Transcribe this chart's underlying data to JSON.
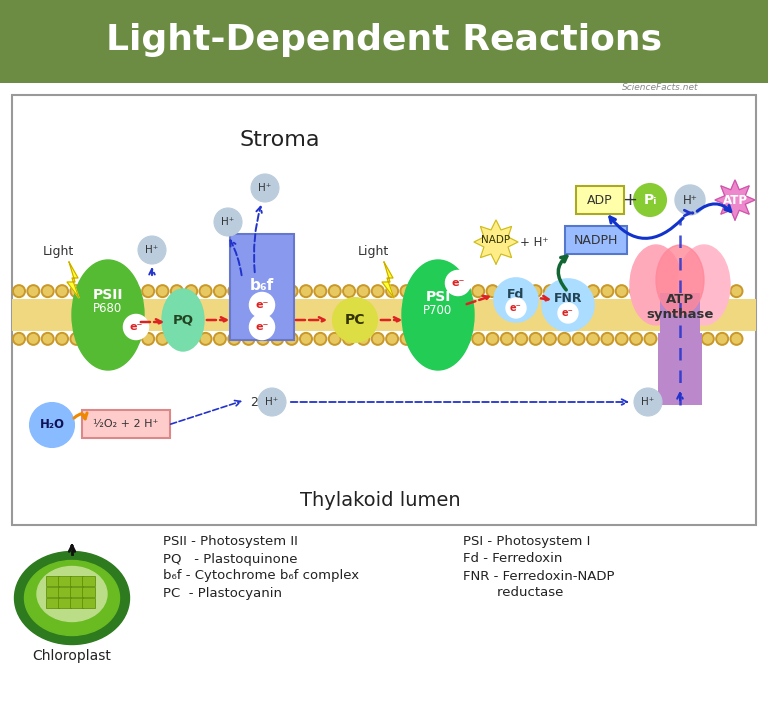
{
  "title": "Light-Dependent Reactions",
  "title_bg": "#6b8c42",
  "title_color": "#ffffff",
  "bg_color": "#ffffff",
  "stroma_label": "Stroma",
  "lumen_label": "Thylakoid lumen",
  "mem_fill": "#f0d880",
  "bead_dark": "#c8982a",
  "bead_light": "#e8c860",
  "psii_color": "#55bb33",
  "pq_color": "#77ddaa",
  "b6f_color": "#8899ee",
  "b6f_edge": "#6677cc",
  "pc_color": "#dddd44",
  "psi_color": "#22cc55",
  "fd_color": "#aaddff",
  "fnr_color": "#aaddff",
  "atp_lobe_l": "#ffaabb",
  "atp_lobe_r": "#ffbbcc",
  "atp_center": "#ff8899",
  "atp_stem": "#bb88cc",
  "h_bubble": "#bbccdd",
  "h2o_color": "#88bbff",
  "o2_color": "#ffcccc",
  "o2_edge": "#dd8888",
  "adp_color": "#ffffaa",
  "adp_edge": "#aaaa22",
  "pi_color": "#88cc33",
  "atp_star": "#ee88cc",
  "nadp_color": "#ffff99",
  "nadp_edge": "#cccc22",
  "nadph_color": "#99bbff",
  "nadph_edge": "#5577cc",
  "red_arr": "#dd2222",
  "blue_arr": "#2233cc",
  "green_arr": "#116633",
  "orange_arr": "#ee8800",
  "light_bolt": "#ffff33",
  "light_bolt_edge": "#ccaa00",
  "watermark": "ScienceFacts.net",
  "legend_left": [
    "PSII - Photosystem II",
    "PQ   - Plastoquinone",
    "b₆f - Cytochrome b₆f complex",
    "PC  - Plastocyanin"
  ],
  "legend_right": [
    "PSI - Photosystem I",
    "Fd - Ferredoxin",
    "FNR - Ferredoxin-NADP",
    "        reductase"
  ]
}
